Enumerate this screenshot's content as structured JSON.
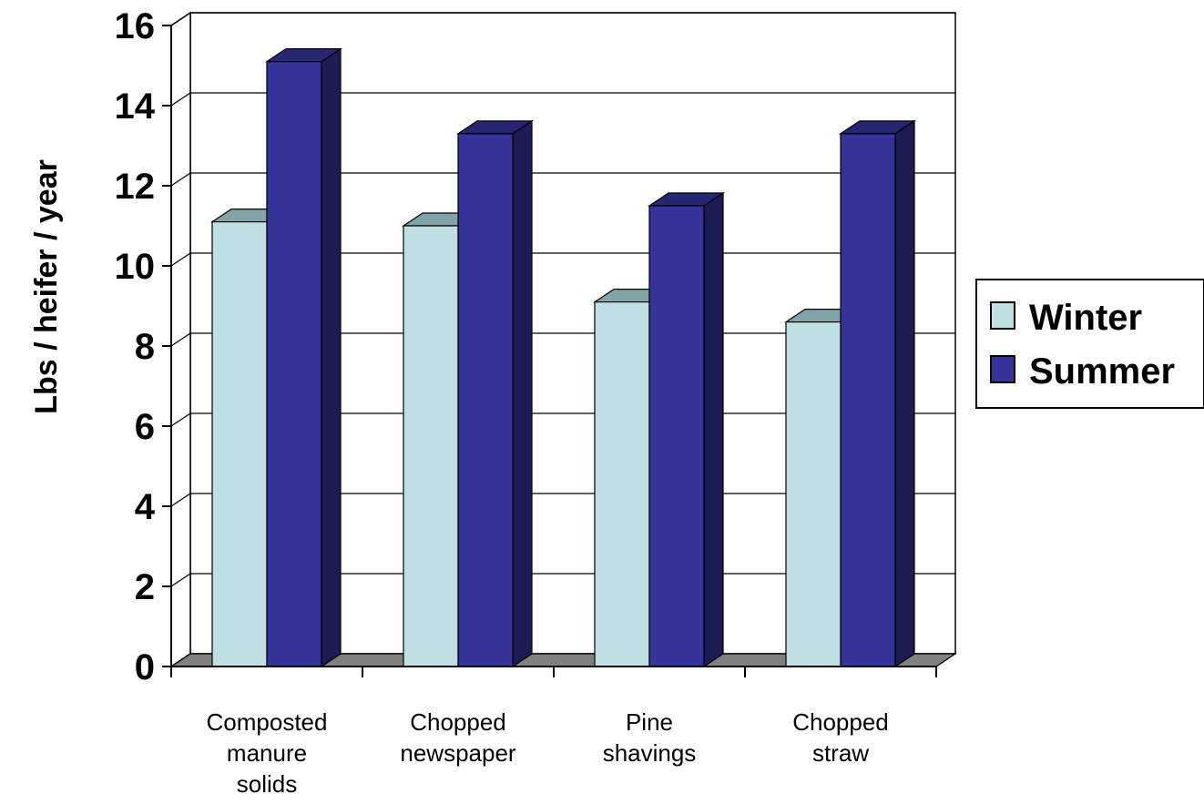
{
  "chart_data": {
    "type": "bar",
    "style": "3d-clustered-column",
    "categories": [
      [
        "Composted",
        "manure",
        "solids"
      ],
      [
        "Chopped",
        "newspaper"
      ],
      [
        "Pine",
        "shavings"
      ],
      [
        "Chopped",
        "straw"
      ]
    ],
    "series": [
      {
        "name": "Winter",
        "color": "#bee0e3",
        "values": [
          11.1,
          11.0,
          9.1,
          8.6
        ]
      },
      {
        "name": "Summer",
        "color": "#333399",
        "values": [
          15.1,
          13.3,
          11.5,
          13.3
        ]
      }
    ],
    "title": "",
    "xlabel": "",
    "ylabel": "Lbs / heifer / year",
    "ylim": [
      0,
      16
    ],
    "yticks": [
      "0",
      "2",
      "4",
      "6",
      "8",
      "10",
      "12",
      "14",
      "16"
    ],
    "grid": true,
    "legend_position": "right",
    "floor_color": "#808080"
  }
}
